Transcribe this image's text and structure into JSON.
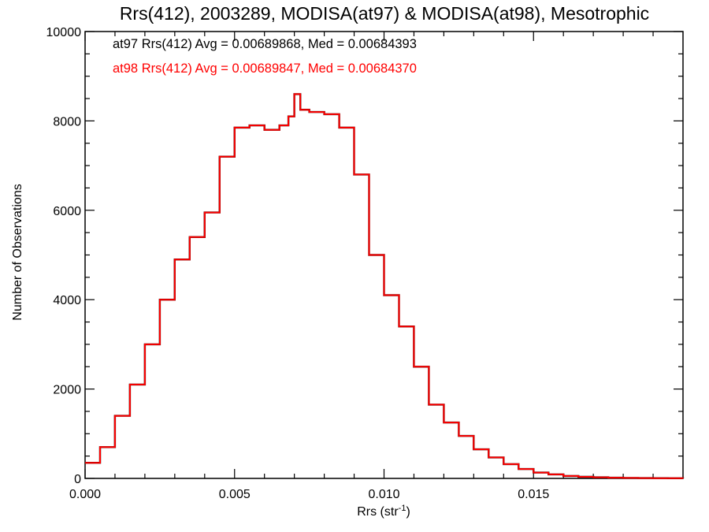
{
  "chart_data": {
    "type": "line",
    "subtype": "histogram-step",
    "title": "Rrs(412), 2003289, MODISA(at97) & MODISA(at98), Mesotrophic",
    "xlabel": "Rrs (str",
    "xlabel_sup": "-1",
    "xlabel_close": ")",
    "ylabel": "Number of Observations",
    "xlim": [
      0.0,
      0.02
    ],
    "ylim": [
      0,
      10000
    ],
    "xticks": [
      0.0,
      0.005,
      0.01,
      0.015
    ],
    "xtick_labels": [
      "0.000",
      "0.005",
      "0.010",
      "0.015"
    ],
    "yticks": [
      0,
      2000,
      4000,
      6000,
      8000,
      10000
    ],
    "ytick_labels": [
      "0",
      "2000",
      "4000",
      "6000",
      "8000",
      "10000"
    ],
    "legend_position": "top-left",
    "colors": {
      "at97": "#000000",
      "at98": "#ff0000"
    },
    "annotations": [
      "at97 Rrs(412) Avg = 0.00689868, Med = 0.00684393",
      "at98 Rrs(412) Avg = 0.00689847, Med = 0.00684370"
    ],
    "x": [
      0.0,
      0.0005,
      0.001,
      0.0015,
      0.002,
      0.0025,
      0.003,
      0.0035,
      0.004,
      0.0045,
      0.005,
      0.0055,
      0.006,
      0.0065,
      0.0068,
      0.007,
      0.0072,
      0.0075,
      0.008,
      0.0085,
      0.009,
      0.0095,
      0.01,
      0.0105,
      0.011,
      0.0115,
      0.012,
      0.0125,
      0.013,
      0.0135,
      0.014,
      0.0145,
      0.015,
      0.0155,
      0.016,
      0.0165,
      0.017,
      0.0175,
      0.018,
      0.0185,
      0.019,
      0.0195,
      0.02
    ],
    "series": [
      {
        "name": "at97",
        "values": [
          350,
          700,
          1400,
          2100,
          3000,
          4000,
          4900,
          5400,
          5950,
          7200,
          7850,
          7900,
          7800,
          7900,
          8100,
          8600,
          8250,
          8200,
          8150,
          7850,
          6800,
          5000,
          4100,
          3400,
          2500,
          1650,
          1250,
          950,
          650,
          470,
          320,
          210,
          130,
          90,
          55,
          35,
          25,
          15,
          10,
          7,
          5,
          3,
          2
        ]
      },
      {
        "name": "at98",
        "values": [
          350,
          700,
          1400,
          2100,
          3000,
          4000,
          4900,
          5400,
          5950,
          7200,
          7850,
          7900,
          7800,
          7900,
          8100,
          8600,
          8250,
          8200,
          8150,
          7850,
          6800,
          5000,
          4100,
          3400,
          2500,
          1650,
          1250,
          950,
          650,
          470,
          320,
          210,
          130,
          90,
          55,
          35,
          25,
          15,
          10,
          7,
          5,
          3,
          2
        ]
      }
    ]
  }
}
